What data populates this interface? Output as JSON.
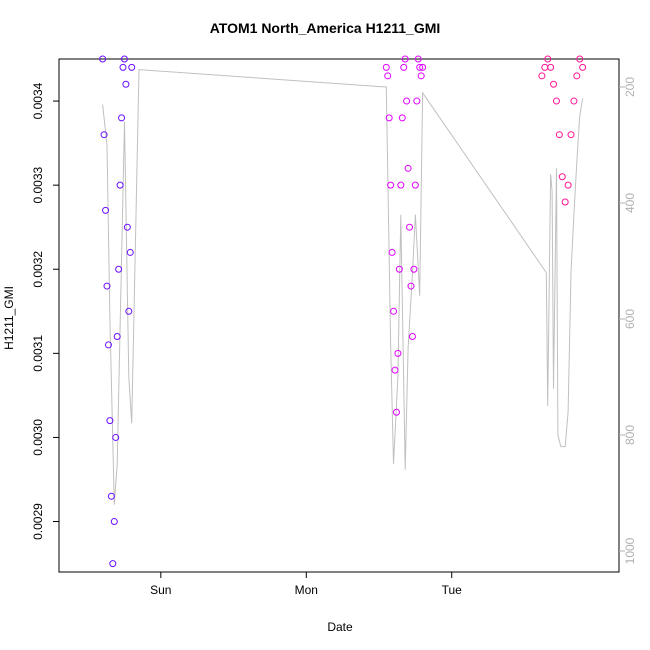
{
  "chart_data": {
    "type": "scatter",
    "title": "ATOM1 North_America H1211_GMI",
    "xlabel": "Date",
    "ylabel": "H1211_GMI",
    "x_ticks": [
      "Sun",
      "Mon",
      "Tue"
    ],
    "ylim": [
      0.00284,
      0.00345
    ],
    "y_ticks": [
      "0.0029",
      "0.0030",
      "0.0031",
      "0.0032",
      "0.0033",
      "0.0034"
    ],
    "y2_ticks": [
      "200",
      "400",
      "600",
      "800",
      "1000"
    ],
    "y2lim": [
      1000,
      200
    ],
    "grid": false,
    "colors": {
      "series1": "#6a0dff",
      "series2": "#e000ff",
      "series3": "#ff1493",
      "line": "#c0c0c0"
    },
    "series": [
      {
        "x_days": [
          -0.4,
          -0.39,
          -0.38,
          -0.37,
          -0.36,
          -0.35,
          -0.34,
          -0.33,
          -0.32,
          -0.31,
          -0.3,
          -0.29,
          -0.28,
          -0.27,
          -0.26,
          -0.25,
          -0.24,
          -0.23,
          -0.22,
          -0.21,
          -0.2
        ],
        "y": [
          0.00345,
          0.00336,
          0.00327,
          0.00318,
          0.00311,
          0.00302,
          0.00293,
          0.00285,
          0.0029,
          0.003,
          0.00312,
          0.0032,
          0.0033,
          0.00338,
          0.00344,
          0.00345,
          0.00342,
          0.00325,
          0.00315,
          0.00322,
          0.00344
        ]
      },
      {
        "x_days": [
          1.55,
          1.56,
          1.57,
          1.58,
          1.59,
          1.6,
          1.61,
          1.62,
          1.63,
          1.64,
          1.65,
          1.66,
          1.67,
          1.68,
          1.69,
          1.7,
          1.71,
          1.72,
          1.73,
          1.74,
          1.75,
          1.76,
          1.77,
          1.78,
          1.79,
          1.8
        ],
        "y": [
          0.00344,
          0.00343,
          0.00338,
          0.0033,
          0.00322,
          0.00315,
          0.00308,
          0.00303,
          0.0031,
          0.0032,
          0.0033,
          0.00338,
          0.00344,
          0.00345,
          0.0034,
          0.00332,
          0.00325,
          0.00318,
          0.00312,
          0.0032,
          0.0033,
          0.0034,
          0.00345,
          0.00344,
          0.00343,
          0.00344
        ]
      },
      {
        "x_days": [
          2.62,
          2.64,
          2.66,
          2.68,
          2.7,
          2.72,
          2.74,
          2.76,
          2.78,
          2.8,
          2.82,
          2.84,
          2.86,
          2.88,
          2.9
        ],
        "y": [
          0.00343,
          0.00344,
          0.00345,
          0.00344,
          0.00342,
          0.0034,
          0.00336,
          0.00331,
          0.00328,
          0.0033,
          0.00336,
          0.0034,
          0.00343,
          0.00345,
          0.00344
        ]
      }
    ],
    "pressure_line": {
      "x_days": [
        -0.4,
        -0.37,
        -0.35,
        -0.32,
        -0.3,
        -0.27,
        -0.25,
        -0.22,
        -0.2,
        -0.15,
        1.55,
        1.58,
        1.6,
        1.63,
        1.65,
        1.68,
        1.7,
        1.73,
        1.75,
        1.78,
        1.8,
        2.65,
        2.66,
        2.68,
        2.69,
        2.7,
        2.72,
        2.73,
        2.75,
        2.78,
        2.8,
        2.82,
        2.84,
        2.86,
        2.88,
        2.9
      ],
      "y": [
        230,
        300,
        600,
        920,
        850,
        500,
        260,
        700,
        780,
        170,
        200,
        640,
        850,
        700,
        420,
        860,
        650,
        520,
        420,
        560,
        210,
        520,
        750,
        350,
        380,
        720,
        340,
        800,
        820,
        820,
        760,
        520,
        420,
        330,
        250,
        220
      ]
    }
  }
}
